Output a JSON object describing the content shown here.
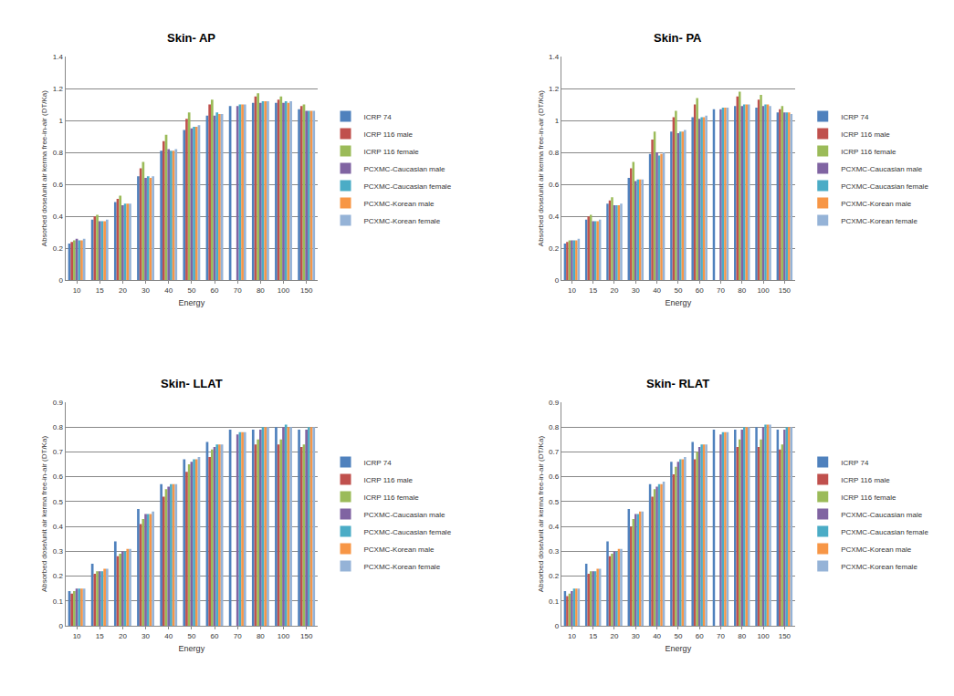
{
  "chart_data": [
    {
      "type": "bar",
      "title": "Skin- AP",
      "x_label": "Energy",
      "y_label": "Absorbed dose/unit air kerma free-in-air (DT/Ka)",
      "categories": [
        "10",
        "15",
        "20",
        "30",
        "40",
        "50",
        "60",
        "70",
        "80",
        "100",
        "150"
      ],
      "ylim": [
        0,
        1.4
      ],
      "yticks": [
        0,
        0.2,
        0.4,
        0.6,
        0.8,
        1,
        1.2,
        1.4
      ],
      "grid": true,
      "legend": "right",
      "series": [
        {
          "name": "ICRP 74",
          "color": "#4f81bd",
          "values": [
            0.23,
            0.38,
            0.49,
            0.65,
            0.81,
            0.94,
            1.03,
            1.09,
            1.11,
            1.11,
            1.07
          ]
        },
        {
          "name": "ICRP 116 male",
          "color": "#c0504d",
          "values": [
            0.24,
            0.4,
            0.51,
            0.7,
            0.87,
            1.01,
            1.1,
            null,
            1.15,
            1.13,
            1.09
          ]
        },
        {
          "name": "ICRP 116 female",
          "color": "#9bbb59",
          "values": [
            0.25,
            0.41,
            0.53,
            0.74,
            0.91,
            1.05,
            1.13,
            null,
            1.17,
            1.15,
            1.1
          ]
        },
        {
          "name": "PCXMC-Caucasian male",
          "color": "#8064a2",
          "values": [
            0.26,
            0.37,
            0.47,
            0.64,
            0.82,
            0.95,
            1.03,
            1.09,
            1.11,
            1.11,
            1.06
          ]
        },
        {
          "name": "PCXMC-Caucasian female",
          "color": "#4bacc6",
          "values": [
            0.25,
            0.37,
            0.48,
            0.65,
            0.81,
            0.96,
            1.05,
            1.1,
            1.12,
            1.12,
            1.06
          ]
        },
        {
          "name": "PCXMC-Korean male",
          "color": "#f79646",
          "values": [
            0.25,
            0.37,
            0.48,
            0.64,
            0.81,
            0.96,
            1.04,
            1.1,
            1.12,
            1.11,
            1.06
          ]
        },
        {
          "name": "PCXMC-Korean female",
          "color": "#95b3d7",
          "values": [
            0.26,
            0.38,
            0.48,
            0.65,
            0.82,
            0.97,
            1.04,
            1.1,
            1.12,
            1.12,
            1.06
          ]
        }
      ]
    },
    {
      "type": "bar",
      "title": "Skin- PA",
      "x_label": "Energy",
      "y_label": "Absorbed dose/unit air kerma free-in-air (DT/Ka)",
      "categories": [
        "10",
        "15",
        "20",
        "30",
        "40",
        "50",
        "60",
        "70",
        "80",
        "100",
        "150"
      ],
      "ylim": [
        0,
        1.4
      ],
      "yticks": [
        0,
        0.2,
        0.4,
        0.6,
        0.8,
        1,
        1.2,
        1.4
      ],
      "grid": true,
      "legend": "right",
      "series": [
        {
          "name": "ICRP 74",
          "color": "#4f81bd",
          "values": [
            0.23,
            0.38,
            0.48,
            0.64,
            0.79,
            0.93,
            1.02,
            1.07,
            1.09,
            1.08,
            1.05
          ]
        },
        {
          "name": "ICRP 116 male",
          "color": "#c0504d",
          "values": [
            0.24,
            0.4,
            0.5,
            0.7,
            0.88,
            1.02,
            1.1,
            null,
            1.15,
            1.13,
            1.07
          ]
        },
        {
          "name": "ICRP 116 female",
          "color": "#9bbb59",
          "values": [
            0.25,
            0.41,
            0.52,
            0.74,
            0.93,
            1.06,
            1.14,
            null,
            1.18,
            1.16,
            1.09
          ]
        },
        {
          "name": "PCXMC-Caucasian male",
          "color": "#8064a2",
          "values": [
            0.25,
            0.37,
            0.47,
            0.62,
            0.8,
            0.92,
            1.01,
            1.07,
            1.09,
            1.09,
            1.05
          ]
        },
        {
          "name": "PCXMC-Caucasian female",
          "color": "#4bacc6",
          "values": [
            0.25,
            0.37,
            0.47,
            0.63,
            0.78,
            0.93,
            1.02,
            1.08,
            1.1,
            1.1,
            1.05
          ]
        },
        {
          "name": "PCXMC-Korean male",
          "color": "#f79646",
          "values": [
            0.25,
            0.37,
            0.47,
            0.63,
            0.79,
            0.93,
            1.02,
            1.08,
            1.1,
            1.1,
            1.05
          ]
        },
        {
          "name": "PCXMC-Korean female",
          "color": "#95b3d7",
          "values": [
            0.26,
            0.38,
            0.48,
            0.63,
            0.8,
            0.94,
            1.03,
            1.08,
            1.1,
            1.09,
            1.04
          ]
        }
      ]
    },
    {
      "type": "bar",
      "title": "Skin- LLAT",
      "x_label": "Energy",
      "y_label": "Absorbed dose/unit air kerma free-in-air (DT/Ka)",
      "categories": [
        "10",
        "15",
        "20",
        "30",
        "40",
        "50",
        "60",
        "70",
        "80",
        "100",
        "150"
      ],
      "ylim": [
        0,
        0.9
      ],
      "yticks": [
        0,
        0.1,
        0.2,
        0.3,
        0.4,
        0.5,
        0.6,
        0.7,
        0.8,
        0.9
      ],
      "grid": true,
      "legend": "right",
      "series": [
        {
          "name": "ICRP 74",
          "color": "#4f81bd",
          "values": [
            0.14,
            0.25,
            0.34,
            0.47,
            0.57,
            0.67,
            0.74,
            0.79,
            0.79,
            0.8,
            0.79
          ]
        },
        {
          "name": "ICRP 116 male",
          "color": "#c0504d",
          "values": [
            0.13,
            0.21,
            0.28,
            0.41,
            0.52,
            0.62,
            0.68,
            null,
            0.73,
            0.73,
            0.72
          ]
        },
        {
          "name": "ICRP 116 female",
          "color": "#9bbb59",
          "values": [
            0.14,
            0.22,
            0.29,
            0.43,
            0.55,
            0.65,
            0.71,
            null,
            0.75,
            0.75,
            0.73
          ]
        },
        {
          "name": "PCXMC-Caucasian male",
          "color": "#8064a2",
          "values": [
            0.15,
            0.22,
            0.3,
            0.45,
            0.56,
            0.66,
            0.72,
            0.77,
            0.79,
            0.8,
            0.79
          ]
        },
        {
          "name": "PCXMC-Caucasian female",
          "color": "#4bacc6",
          "values": [
            0.15,
            0.22,
            0.3,
            0.45,
            0.57,
            0.67,
            0.73,
            0.78,
            0.8,
            0.81,
            0.8
          ]
        },
        {
          "name": "PCXMC-Korean male",
          "color": "#f79646",
          "values": [
            0.15,
            0.23,
            0.31,
            0.45,
            0.57,
            0.67,
            0.73,
            0.78,
            0.8,
            0.8,
            0.8
          ]
        },
        {
          "name": "PCXMC-Korean female",
          "color": "#95b3d7",
          "values": [
            0.15,
            0.23,
            0.31,
            0.46,
            0.57,
            0.68,
            0.73,
            0.78,
            0.8,
            0.8,
            0.8
          ]
        }
      ]
    },
    {
      "type": "bar",
      "title": "Skin- RLAT",
      "x_label": "Energy",
      "y_label": "Absorbed dose/unit air kerma free-in-air (DT/Ka)",
      "categories": [
        "10",
        "15",
        "20",
        "30",
        "40",
        "50",
        "60",
        "70",
        "80",
        "100",
        "150"
      ],
      "ylim": [
        0,
        0.9
      ],
      "yticks": [
        0,
        0.1,
        0.2,
        0.3,
        0.4,
        0.5,
        0.6,
        0.7,
        0.8,
        0.9
      ],
      "grid": true,
      "legend": "right",
      "series": [
        {
          "name": "ICRP 74",
          "color": "#4f81bd",
          "values": [
            0.14,
            0.25,
            0.34,
            0.47,
            0.57,
            0.66,
            0.74,
            0.79,
            0.79,
            0.8,
            0.79
          ]
        },
        {
          "name": "ICRP 116 male",
          "color": "#c0504d",
          "values": [
            0.12,
            0.21,
            0.28,
            0.4,
            0.52,
            0.61,
            0.67,
            null,
            0.72,
            0.72,
            0.71
          ]
        },
        {
          "name": "ICRP 116 female",
          "color": "#9bbb59",
          "values": [
            0.13,
            0.22,
            0.29,
            0.43,
            0.55,
            0.64,
            0.7,
            null,
            0.75,
            0.75,
            0.73
          ]
        },
        {
          "name": "PCXMC-Caucasian male",
          "color": "#8064a2",
          "values": [
            0.14,
            0.22,
            0.3,
            0.45,
            0.56,
            0.66,
            0.72,
            0.77,
            0.79,
            0.8,
            0.79
          ]
        },
        {
          "name": "PCXMC-Caucasian female",
          "color": "#4bacc6",
          "values": [
            0.15,
            0.22,
            0.3,
            0.45,
            0.57,
            0.67,
            0.73,
            0.78,
            0.8,
            0.81,
            0.8
          ]
        },
        {
          "name": "PCXMC-Korean male",
          "color": "#f79646",
          "values": [
            0.15,
            0.23,
            0.31,
            0.46,
            0.57,
            0.67,
            0.73,
            0.78,
            0.8,
            0.81,
            0.8
          ]
        },
        {
          "name": "PCXMC-Korean female",
          "color": "#95b3d7",
          "values": [
            0.15,
            0.23,
            0.31,
            0.46,
            0.58,
            0.68,
            0.73,
            0.78,
            0.8,
            0.81,
            0.8
          ]
        }
      ]
    }
  ]
}
